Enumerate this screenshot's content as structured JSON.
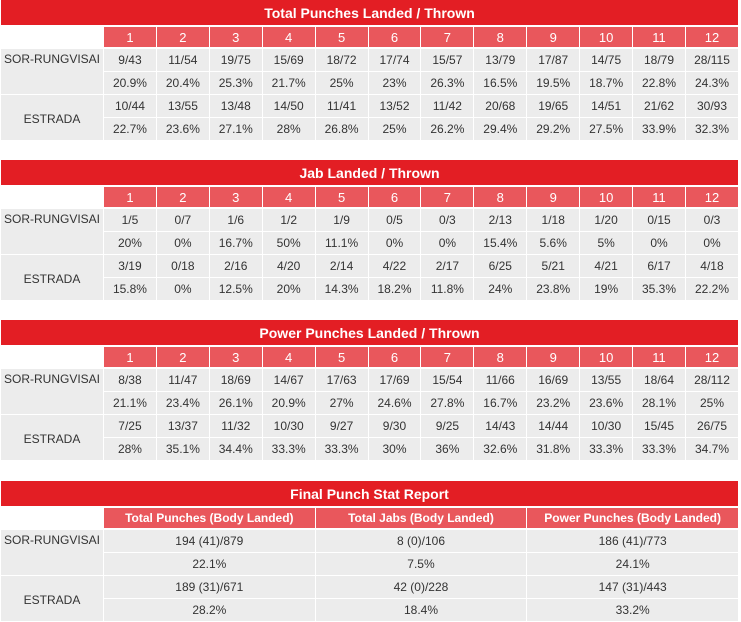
{
  "rounds": [
    "1",
    "2",
    "3",
    "4",
    "5",
    "6",
    "7",
    "8",
    "9",
    "10",
    "11",
    "12"
  ],
  "fighters": [
    "SOR-RUNGVISAI",
    "ESTRADA"
  ],
  "colors": {
    "title_bg": "#e31e24",
    "header_bg": "#e9575c",
    "row_bg": "#ececec"
  },
  "tables": [
    {
      "title": "Total Punches Landed / Thrown",
      "rows": [
        {
          "name": "SOR-RUNGVISAI",
          "counts": [
            "9/43",
            "11/54",
            "19/75",
            "15/69",
            "18/72",
            "17/74",
            "15/57",
            "13/79",
            "17/87",
            "14/75",
            "18/79",
            "28/115"
          ],
          "pcts": [
            "20.9%",
            "20.4%",
            "25.3%",
            "21.7%",
            "25%",
            "23%",
            "26.3%",
            "16.5%",
            "19.5%",
            "18.7%",
            "22.8%",
            "24.3%"
          ]
        },
        {
          "name": "ESTRADA",
          "counts": [
            "10/44",
            "13/55",
            "13/48",
            "14/50",
            "11/41",
            "13/52",
            "11/42",
            "20/68",
            "19/65",
            "14/51",
            "21/62",
            "30/93"
          ],
          "pcts": [
            "22.7%",
            "23.6%",
            "27.1%",
            "28%",
            "26.8%",
            "25%",
            "26.2%",
            "29.4%",
            "29.2%",
            "27.5%",
            "33.9%",
            "32.3%"
          ]
        }
      ]
    },
    {
      "title": "Jab Landed / Thrown",
      "rows": [
        {
          "name": "SOR-RUNGVISAI",
          "counts": [
            "1/5",
            "0/7",
            "1/6",
            "1/2",
            "1/9",
            "0/5",
            "0/3",
            "2/13",
            "1/18",
            "1/20",
            "0/15",
            "0/3"
          ],
          "pcts": [
            "20%",
            "0%",
            "16.7%",
            "50%",
            "11.1%",
            "0%",
            "0%",
            "15.4%",
            "5.6%",
            "5%",
            "0%",
            "0%"
          ]
        },
        {
          "name": "ESTRADA",
          "counts": [
            "3/19",
            "0/18",
            "2/16",
            "4/20",
            "2/14",
            "4/22",
            "2/17",
            "6/25",
            "5/21",
            "4/21",
            "6/17",
            "4/18"
          ],
          "pcts": [
            "15.8%",
            "0%",
            "12.5%",
            "20%",
            "14.3%",
            "18.2%",
            "11.8%",
            "24%",
            "23.8%",
            "19%",
            "35.3%",
            "22.2%"
          ]
        }
      ]
    },
    {
      "title": "Power Punches Landed / Thrown",
      "rows": [
        {
          "name": "SOR-RUNGVISAI",
          "counts": [
            "8/38",
            "11/47",
            "18/69",
            "14/67",
            "17/63",
            "17/69",
            "15/54",
            "11/66",
            "16/69",
            "13/55",
            "18/64",
            "28/112"
          ],
          "pcts": [
            "21.1%",
            "23.4%",
            "26.1%",
            "20.9%",
            "27%",
            "24.6%",
            "27.8%",
            "16.7%",
            "23.2%",
            "23.6%",
            "28.1%",
            "25%"
          ]
        },
        {
          "name": "ESTRADA",
          "counts": [
            "7/25",
            "13/37",
            "11/32",
            "10/30",
            "9/27",
            "9/30",
            "9/25",
            "14/43",
            "14/44",
            "10/30",
            "15/45",
            "26/75"
          ],
          "pcts": [
            "28%",
            "35.1%",
            "34.4%",
            "33.3%",
            "33.3%",
            "30%",
            "36%",
            "32.6%",
            "31.8%",
            "33.3%",
            "33.3%",
            "34.7%"
          ]
        }
      ]
    }
  ],
  "final": {
    "title": "Final Punch Stat Report",
    "columns": [
      "Total Punches (Body Landed)",
      "Total Jabs (Body Landed)",
      "Power Punches (Body Landed)"
    ],
    "rows": [
      {
        "name": "SOR-RUNGVISAI",
        "counts": [
          "194 (41)/879",
          "8 (0)/106",
          "186 (41)/773"
        ],
        "pcts": [
          "22.1%",
          "7.5%",
          "24.1%"
        ]
      },
      {
        "name": "ESTRADA",
        "counts": [
          "189 (31)/671",
          "42 (0)/228",
          "147 (31)/443"
        ],
        "pcts": [
          "28.2%",
          "18.4%",
          "33.2%"
        ]
      }
    ]
  }
}
